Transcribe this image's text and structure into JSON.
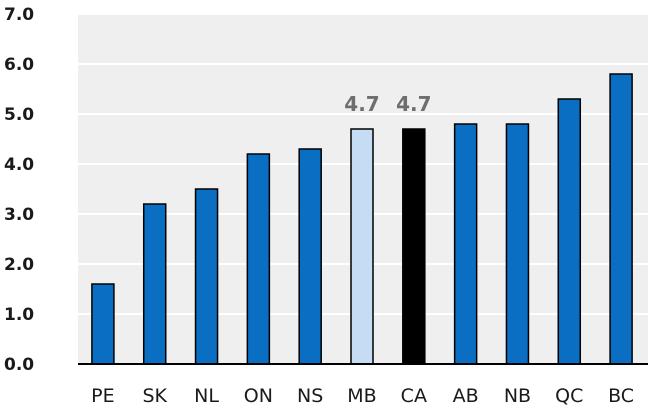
{
  "chart_data": {
    "type": "bar",
    "title": "",
    "xlabel": "",
    "ylabel": "",
    "categories": [
      "PE",
      "SK",
      "NL",
      "ON",
      "NS",
      "MB",
      "CA",
      "AB",
      "NB",
      "QC",
      "BC"
    ],
    "values": [
      1.6,
      3.2,
      3.5,
      4.2,
      4.3,
      4.7,
      4.7,
      4.8,
      4.8,
      5.3,
      5.8
    ],
    "ylim": [
      0,
      7
    ],
    "y_ticks": [
      "0.0",
      "1.0",
      "2.0",
      "3.0",
      "4.0",
      "5.0",
      "6.0",
      "7.0"
    ],
    "data_labels": [
      {
        "category": "MB",
        "text": "4.7"
      },
      {
        "category": "CA",
        "text": "4.7"
      }
    ],
    "grid": true,
    "colors": {
      "default": "#0a6fc2",
      "highlight_MB": "#c6dcf4",
      "highlight_CA": "#000000",
      "background": "#efefef",
      "gridline": "#ffffff"
    }
  }
}
